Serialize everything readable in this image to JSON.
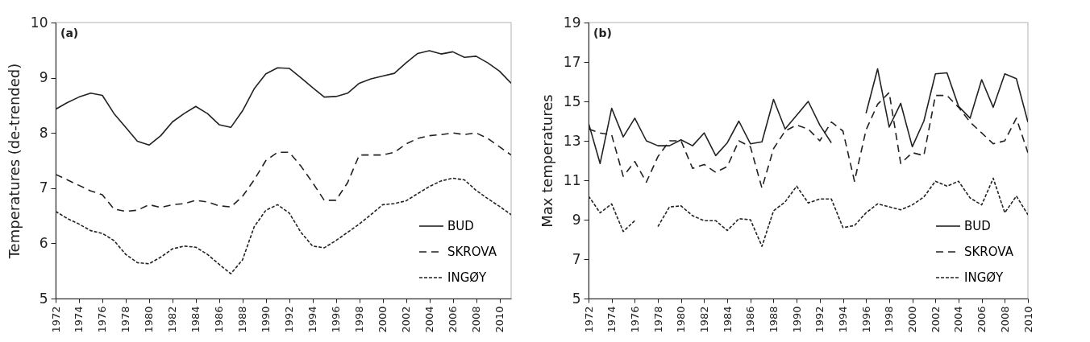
{
  "chart_data": [
    {
      "type": "line",
      "ylabel": "Temperatures (de-trended)",
      "annotations": [
        "(a)"
      ],
      "x": [
        1972,
        1973,
        1974,
        1975,
        1976,
        1977,
        1978,
        1979,
        1980,
        1981,
        1982,
        1983,
        1984,
        1985,
        1986,
        1987,
        1988,
        1989,
        1990,
        1991,
        1992,
        1993,
        1994,
        1995,
        1996,
        1997,
        1998,
        1999,
        2000,
        2001,
        2002,
        2003,
        2004,
        2005,
        2006,
        2007,
        2008,
        2009,
        2010,
        2011
      ],
      "xlim": [
        1972,
        2011
      ],
      "xticks": [
        1972,
        1974,
        1976,
        1978,
        1980,
        1982,
        1984,
        1986,
        1988,
        1990,
        1992,
        1994,
        1996,
        1998,
        2000,
        2002,
        2004,
        2006,
        2008,
        2010
      ],
      "ylim": [
        5,
        10
      ],
      "yticks": [
        5,
        6,
        7,
        8,
        9,
        10
      ],
      "legend": "bottom right",
      "series": [
        {
          "name": "BUD",
          "color": "#222222",
          "line_style": "solid",
          "values": [
            8.43,
            8.55,
            8.65,
            8.72,
            8.68,
            8.35,
            8.1,
            7.85,
            7.78,
            7.95,
            8.2,
            8.35,
            8.48,
            8.35,
            8.15,
            8.1,
            8.4,
            8.8,
            9.07,
            9.18,
            9.17,
            9.0,
            8.82,
            8.65,
            8.66,
            8.72,
            8.9,
            8.98,
            9.03,
            9.08,
            9.27,
            9.44,
            9.49,
            9.43,
            9.47,
            9.37,
            9.39,
            9.27,
            9.12,
            8.9
          ]
        },
        {
          "name": "SKROVA",
          "color": "#222222",
          "line_style": "dashed",
          "values": [
            7.25,
            7.15,
            7.05,
            6.95,
            6.88,
            6.62,
            6.58,
            6.6,
            6.7,
            6.65,
            6.7,
            6.72,
            6.78,
            6.75,
            6.68,
            6.66,
            6.85,
            7.15,
            7.5,
            7.65,
            7.65,
            7.4,
            7.1,
            6.78,
            6.78,
            7.1,
            7.6,
            7.6,
            7.6,
            7.65,
            7.8,
            7.9,
            7.95,
            7.97,
            8.0,
            7.97,
            8.0,
            7.9,
            7.75,
            7.6
          ]
        },
        {
          "name": "INGØY",
          "color": "#222222",
          "line_style": "dotted",
          "values": [
            6.58,
            6.45,
            6.35,
            6.23,
            6.18,
            6.05,
            5.8,
            5.65,
            5.63,
            5.75,
            5.9,
            5.95,
            5.93,
            5.8,
            5.62,
            5.45,
            5.7,
            6.3,
            6.6,
            6.7,
            6.55,
            6.2,
            5.95,
            5.92,
            6.05,
            6.2,
            6.35,
            6.52,
            6.7,
            6.72,
            6.77,
            6.9,
            7.03,
            7.13,
            7.18,
            7.15,
            6.96,
            6.81,
            6.67,
            6.52
          ]
        }
      ]
    },
    {
      "type": "line",
      "ylabel": "Max temperatures",
      "annotations": [
        "(b)"
      ],
      "x": [
        1972,
        1973,
        1974,
        1975,
        1976,
        1977,
        1978,
        1979,
        1980,
        1981,
        1982,
        1983,
        1984,
        1985,
        1986,
        1987,
        1988,
        1989,
        1990,
        1991,
        1992,
        1993,
        1994,
        1995,
        1996,
        1997,
        1998,
        1999,
        2000,
        2001,
        2002,
        2003,
        2004,
        2005,
        2006,
        2007,
        2008,
        2009,
        2010
      ],
      "xlim": [
        1972,
        2010
      ],
      "xticks": [
        1972,
        1974,
        1976,
        1978,
        1980,
        1982,
        1984,
        1986,
        1988,
        1990,
        1992,
        1994,
        1996,
        1998,
        2000,
        2002,
        2004,
        2006,
        2008,
        2010
      ],
      "ylim": [
        5,
        19
      ],
      "yticks": [
        5,
        7,
        9,
        11,
        13,
        15,
        17,
        19
      ],
      "legend": "bottom right",
      "series": [
        {
          "name": "BUD",
          "color": "#222222",
          "line_style": "solid",
          "values": [
            13.9,
            11.85,
            14.65,
            13.2,
            14.15,
            13.0,
            12.75,
            12.75,
            13.05,
            12.75,
            13.4,
            12.25,
            12.9,
            14.0,
            12.85,
            12.95,
            15.1,
            13.6,
            14.3,
            15.0,
            13.8,
            12.9,
            null,
            null,
            14.4,
            16.65,
            13.7,
            14.9,
            12.7,
            14.0,
            16.4,
            16.45,
            14.75,
            14.15,
            16.1,
            14.7,
            16.4,
            16.15,
            13.95
          ]
        },
        {
          "name": "SKROVA",
          "color": "#222222",
          "line_style": "dashed",
          "values": [
            13.6,
            13.4,
            13.3,
            11.2,
            11.95,
            10.9,
            12.2,
            13.0,
            13.0,
            11.6,
            11.8,
            11.4,
            11.7,
            13.0,
            12.7,
            10.6,
            12.6,
            13.5,
            13.8,
            13.6,
            13.0,
            13.95,
            13.5,
            10.95,
            13.55,
            14.85,
            15.45,
            11.85,
            12.4,
            12.25,
            15.3,
            15.3,
            14.7,
            13.95,
            13.4,
            12.85,
            13.0,
            14.15,
            12.4
          ]
        },
        {
          "name": "INGØY",
          "color": "#222222",
          "line_style": "dotted",
          "values": [
            10.2,
            9.35,
            9.8,
            8.4,
            8.95,
            null,
            8.65,
            9.65,
            9.7,
            9.2,
            8.95,
            8.95,
            8.45,
            9.05,
            9.0,
            7.65,
            9.45,
            9.9,
            10.7,
            9.85,
            10.05,
            10.05,
            8.6,
            8.7,
            9.35,
            9.8,
            9.65,
            9.5,
            9.75,
            10.15,
            10.95,
            10.7,
            10.95,
            10.1,
            9.75,
            11.1,
            9.35,
            10.2,
            9.25
          ]
        }
      ]
    }
  ]
}
